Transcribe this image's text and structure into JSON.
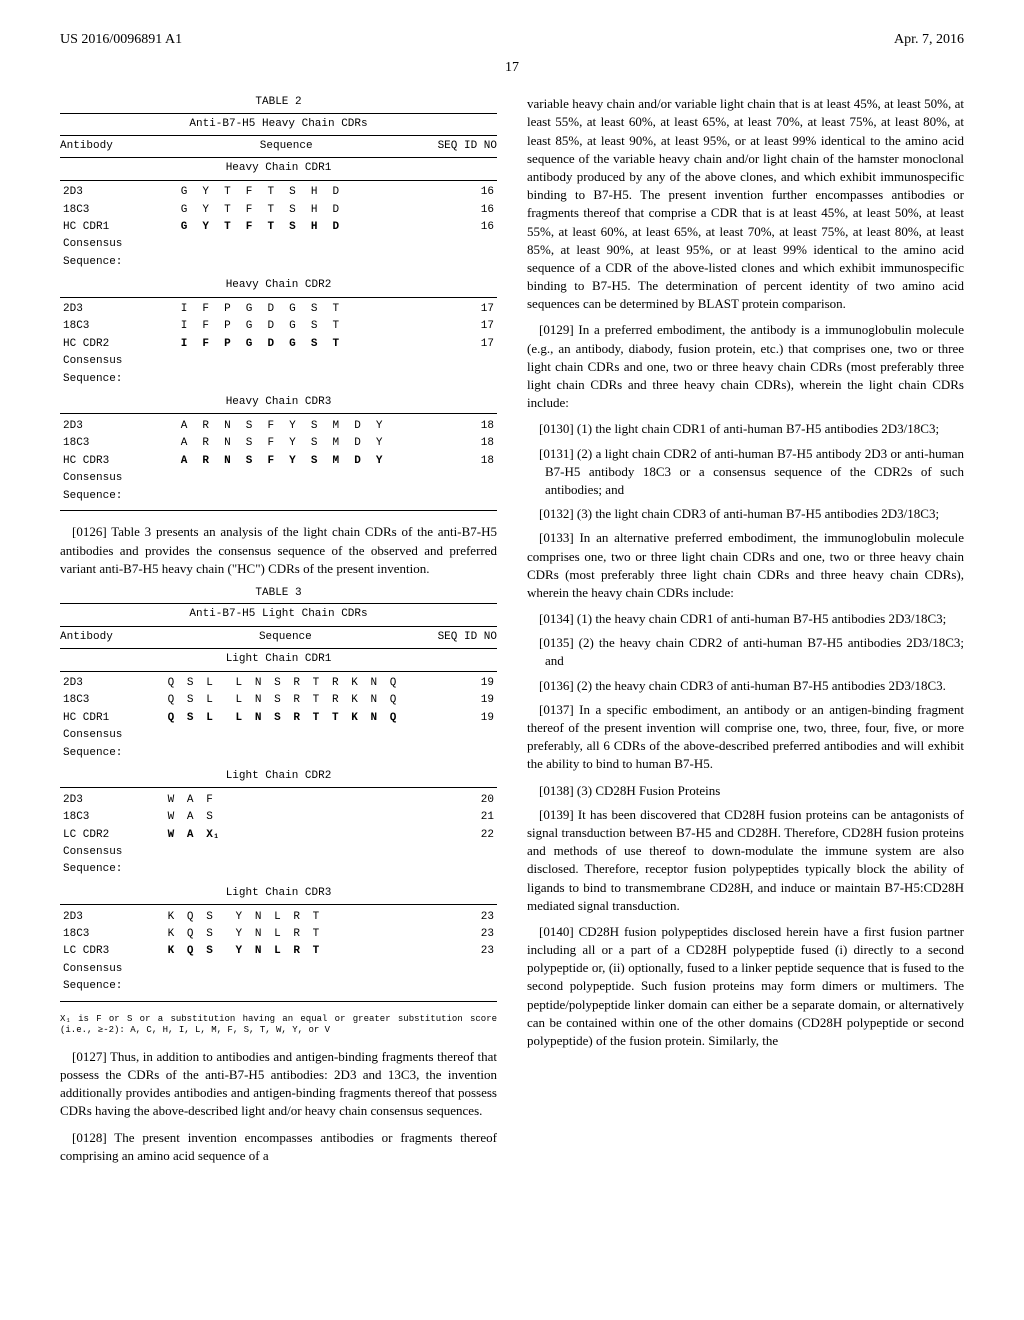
{
  "header": {
    "pub_number": "US 2016/0096891 A1",
    "pub_date": "Apr. 7, 2016",
    "page": "17"
  },
  "table2": {
    "caption": "TABLE 2",
    "title": "Anti-B7-H5 Heavy Chain CDRs",
    "col_antibody": "Antibody",
    "col_sequence": "Sequence",
    "col_seqid": "SEQ ID NO",
    "sections": [
      {
        "name": "Heavy Chain CDR1",
        "rows": [
          {
            "label": "2D3",
            "seq": [
              "G",
              "Y",
              "T",
              "F",
              "T",
              "S",
              "H",
              "D",
              "",
              ""
            ],
            "id": "16",
            "bold": false
          },
          {
            "label": "18C3",
            "seq": [
              "G",
              "Y",
              "T",
              "F",
              "T",
              "S",
              "H",
              "D",
              "",
              ""
            ],
            "id": "16",
            "bold": false
          },
          {
            "label": "HC CDR1",
            "seq": [
              "G",
              "Y",
              "T",
              "F",
              "T",
              "S",
              "H",
              "D",
              "",
              ""
            ],
            "id": "16",
            "bold": true
          },
          {
            "label": "Consensus",
            "seq": [
              "",
              "",
              "",
              "",
              "",
              "",
              "",
              "",
              "",
              ""
            ],
            "id": "",
            "bold": false
          },
          {
            "label": "Sequence:",
            "seq": [
              "",
              "",
              "",
              "",
              "",
              "",
              "",
              "",
              "",
              ""
            ],
            "id": "",
            "bold": false
          }
        ]
      },
      {
        "name": "Heavy Chain CDR2",
        "rows": [
          {
            "label": "2D3",
            "seq": [
              "I",
              "F",
              "P",
              "G",
              "D",
              "G",
              "S",
              "T",
              "",
              ""
            ],
            "id": "17",
            "bold": false
          },
          {
            "label": "18C3",
            "seq": [
              "I",
              "F",
              "P",
              "G",
              "D",
              "G",
              "S",
              "T",
              "",
              ""
            ],
            "id": "17",
            "bold": false
          },
          {
            "label": "HC CDR2",
            "seq": [
              "I",
              "F",
              "P",
              "G",
              "D",
              "G",
              "S",
              "T",
              "",
              ""
            ],
            "id": "17",
            "bold": true
          },
          {
            "label": "Consensus",
            "seq": [
              "",
              "",
              "",
              "",
              "",
              "",
              "",
              "",
              "",
              ""
            ],
            "id": "",
            "bold": false
          },
          {
            "label": "Sequence:",
            "seq": [
              "",
              "",
              "",
              "",
              "",
              "",
              "",
              "",
              "",
              ""
            ],
            "id": "",
            "bold": false
          }
        ]
      },
      {
        "name": "Heavy Chain CDR3",
        "rows": [
          {
            "label": "2D3",
            "seq": [
              "A",
              "R",
              "N",
              "S",
              "F",
              "Y",
              "S",
              "M",
              "D",
              "Y"
            ],
            "id": "18",
            "bold": false
          },
          {
            "label": "18C3",
            "seq": [
              "A",
              "R",
              "N",
              "S",
              "F",
              "Y",
              "S",
              "M",
              "D",
              "Y"
            ],
            "id": "18",
            "bold": false
          },
          {
            "label": "HC CDR3",
            "seq": [
              "A",
              "R",
              "N",
              "S",
              "F",
              "Y",
              "S",
              "M",
              "D",
              "Y"
            ],
            "id": "18",
            "bold": true
          },
          {
            "label": "Consensus",
            "seq": [
              "",
              "",
              "",
              "",
              "",
              "",
              "",
              "",
              "",
              ""
            ],
            "id": "",
            "bold": false
          },
          {
            "label": "Sequence:",
            "seq": [
              "",
              "",
              "",
              "",
              "",
              "",
              "",
              "",
              "",
              ""
            ],
            "id": "",
            "bold": false
          }
        ]
      }
    ]
  },
  "table3": {
    "caption": "TABLE 3",
    "title": "Anti-B7-H5 Light Chain CDRs",
    "col_antibody": "Antibody",
    "col_sequence": "Sequence",
    "col_seqid": "SEQ ID NO",
    "sections": [
      {
        "name": "Light Chain CDR1",
        "rows": [
          {
            "label": "2D3",
            "seq": [
              "Q",
              "S",
              "L",
              "L",
              "N",
              "S",
              "R",
              "T",
              "R",
              "K",
              "N",
              "Q"
            ],
            "id": "19",
            "bold": false
          },
          {
            "label": "18C3",
            "seq": [
              "Q",
              "S",
              "L",
              "L",
              "N",
              "S",
              "R",
              "T",
              "R",
              "K",
              "N",
              "Q"
            ],
            "id": "19",
            "bold": false
          },
          {
            "label": "HC CDR1",
            "seq": [
              "Q",
              "S",
              "L",
              "L",
              "N",
              "S",
              "R",
              "T",
              "T",
              "K",
              "N",
              "Q"
            ],
            "id": "19",
            "bold": true
          },
          {
            "label": "Consensus",
            "seq": [
              "",
              "",
              "",
              "",
              "",
              "",
              "",
              "",
              "",
              "",
              "",
              ""
            ],
            "id": "",
            "bold": false
          },
          {
            "label": "Sequence:",
            "seq": [
              "",
              "",
              "",
              "",
              "",
              "",
              "",
              "",
              "",
              "",
              "",
              ""
            ],
            "id": "",
            "bold": false
          }
        ]
      },
      {
        "name": "Light Chain CDR2",
        "rows": [
          {
            "label": "2D3",
            "seq": [
              "W",
              "A",
              "F",
              "",
              "",
              "",
              "",
              "",
              "",
              "",
              "",
              ""
            ],
            "id": "20",
            "bold": false
          },
          {
            "label": "18C3",
            "seq": [
              "W",
              "A",
              "S",
              "",
              "",
              "",
              "",
              "",
              "",
              "",
              "",
              ""
            ],
            "id": "21",
            "bold": false
          },
          {
            "label": "LC CDR2",
            "seq": [
              "W",
              "A",
              "X₁",
              "",
              "",
              "",
              "",
              "",
              "",
              "",
              "",
              ""
            ],
            "id": "22",
            "bold": true
          },
          {
            "label": "Consensus",
            "seq": [
              "",
              "",
              "",
              "",
              "",
              "",
              "",
              "",
              "",
              "",
              "",
              ""
            ],
            "id": "",
            "bold": false
          },
          {
            "label": "Sequence:",
            "seq": [
              "",
              "",
              "",
              "",
              "",
              "",
              "",
              "",
              "",
              "",
              "",
              ""
            ],
            "id": "",
            "bold": false
          }
        ]
      },
      {
        "name": "Light Chain CDR3",
        "rows": [
          {
            "label": "2D3",
            "seq": [
              "K",
              "Q",
              "S",
              "Y",
              "N",
              "L",
              "R",
              "T",
              "",
              "",
              "",
              ""
            ],
            "id": "23",
            "bold": false
          },
          {
            "label": "18C3",
            "seq": [
              "K",
              "Q",
              "S",
              "Y",
              "N",
              "L",
              "R",
              "T",
              "",
              "",
              "",
              ""
            ],
            "id": "23",
            "bold": false
          },
          {
            "label": "LC CDR3",
            "seq": [
              "K",
              "Q",
              "S",
              "Y",
              "N",
              "L",
              "R",
              "T",
              "",
              "",
              "",
              ""
            ],
            "id": "23",
            "bold": true
          },
          {
            "label": "Consensus",
            "seq": [
              "",
              "",
              "",
              "",
              "",
              "",
              "",
              "",
              "",
              "",
              "",
              ""
            ],
            "id": "",
            "bold": false
          },
          {
            "label": "Sequence:",
            "seq": [
              "",
              "",
              "",
              "",
              "",
              "",
              "",
              "",
              "",
              "",
              "",
              ""
            ],
            "id": "",
            "bold": false
          }
        ]
      }
    ]
  },
  "footnote": "X₁ is F or S or a substitution having an equal or greater substitution score (i.e., ≥-2): A, C, H, I, L, M, F, S, T, W, Y, or V",
  "paras": {
    "p0126": "[0126]   Table 3 presents an analysis of the light chain CDRs of the anti-B7-H5 antibodies and provides the consensus sequence of the observed and preferred variant anti-B7-H5 heavy chain (\"HC\") CDRs of the present invention.",
    "p0127": "[0127]   Thus, in addition to antibodies and antigen-binding fragments thereof that possess the CDRs of the anti-B7-H5 antibodies: 2D3 and 13C3, the invention additionally provides antibodies and antigen-binding fragments thereof that possess CDRs having the above-described light and/or heavy chain consensus sequences.",
    "p0128": "[0128]   The present invention encompasses antibodies or fragments thereof comprising an amino acid sequence of a",
    "r1": "variable heavy chain and/or variable light chain that is at least 45%, at least 50%, at least 55%, at least 60%, at least 65%, at least 70%, at least 75%, at least 80%, at least 85%, at least 90%, at least 95%, or at least 99% identical to the amino acid sequence of the variable heavy chain and/or light chain of the hamster monoclonal antibody produced by any of the above clones, and which exhibit immunospecific binding to B7-H5. The present invention further encompasses antibodies or fragments thereof that comprise a CDR that is at least 45%, at least 50%, at least 55%, at least 60%, at least 65%, at least 70%, at least 75%, at least 80%, at least 85%, at least 90%, at least 95%, or at least 99% identical to the amino acid sequence of a CDR of the above-listed clones and which exhibit immunospecific binding to B7-H5. The determination of percent identity of two amino acid sequences can be determined by BLAST protein comparison.",
    "p0129": "[0129]   In a preferred embodiment, the antibody is a immunoglobulin molecule (e.g., an antibody, diabody, fusion protein, etc.) that comprises one, two or three light chain CDRs and one, two or three heavy chain CDRs (most preferably three light chain CDRs and three heavy chain CDRs), wherein the light chain CDRs include:",
    "p0130": "[0130]   (1) the light chain CDR1 of anti-human B7-H5 antibodies 2D3/18C3;",
    "p0131": "[0131]   (2) a light chain CDR2 of anti-human B7-H5 antibody 2D3 or anti-human B7-H5 antibody 18C3 or a consensus sequence of the CDR2s of such antibodies; and",
    "p0132": "[0132]   (3) the light chain CDR3 of anti-human B7-H5 antibodies 2D3/18C3;",
    "p0133": "[0133]   In an alternative preferred embodiment, the immunoglobulin molecule comprises one, two or three light chain CDRs and one, two or three heavy chain CDRs (most preferably three light chain CDRs and three heavy chain CDRs), wherein the heavy chain CDRs include:",
    "p0134": "[0134]   (1) the heavy chain CDR1 of anti-human B7-H5 antibodies 2D3/18C3;",
    "p0135": "[0135]   (2) the heavy chain CDR2 of anti-human B7-H5 antibodies 2D3/18C3; and",
    "p0136": "[0136]   (2) the heavy chain CDR3 of anti-human B7-H5 antibodies 2D3/18C3.",
    "p0137": "[0137]   In a specific embodiment, an antibody or an antigen-binding fragment thereof of the present invention will comprise one, two, three, four, five, or more preferably, all 6 CDRs of the above-described preferred antibodies and will exhibit the ability to bind to human B7-H5.",
    "p0138": "[0138]   (3) CD28H Fusion Proteins",
    "p0139": "[0139]   It has been discovered that CD28H fusion proteins can be antagonists of signal transduction between B7-H5 and CD28H. Therefore, CD28H fusion proteins and methods of use thereof to down-modulate the immune system are also disclosed. Therefore, receptor fusion polypeptides typically block the ability of ligands to bind to transmembrane CD28H, and induce or maintain B7-H5:CD28H mediated signal transduction.",
    "p0140": "[0140]   CD28H fusion polypeptides disclosed herein have a first fusion partner including all or a part of a CD28H polypeptide fused (i) directly to a second polypeptide or, (ii) optionally, fused to a linker peptide sequence that is fused to the second polypeptide. Such fusion proteins may form dimers or multimers. The peptide/polypeptide linker domain can either be a separate domain, or alternatively can be contained within one of the other domains (CD28H polypeptide or second polypeptide) of the fusion protein. Similarly, the"
  }
}
